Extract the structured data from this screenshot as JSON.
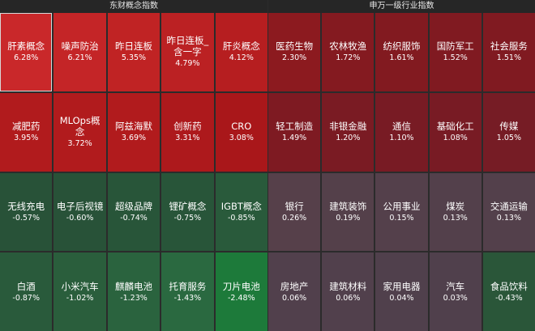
{
  "panels": {
    "left": {
      "title": "东财概念指数",
      "cells": [
        {
          "name": "肝素概念",
          "pct": "6.28%",
          "color": "#c9282a"
        },
        {
          "name": "噪声防治",
          "pct": "6.21%",
          "color": "#c42527"
        },
        {
          "name": "昨日连板",
          "pct": "5.35%",
          "color": "#c02324"
        },
        {
          "name": "昨日连板_含一字",
          "pct": "4.79%",
          "color": "#bb2123"
        },
        {
          "name": "肝炎概念",
          "pct": "4.12%",
          "color": "#b61e20"
        },
        {
          "name": "减肥药",
          "pct": "3.95%",
          "color": "#b11b1d"
        },
        {
          "name": "MLOps概念",
          "pct": "3.72%",
          "color": "#b11b1d"
        },
        {
          "name": "阿兹海默",
          "pct": "3.69%",
          "color": "#b11b1d"
        },
        {
          "name": "创新药",
          "pct": "3.31%",
          "color": "#ad191c"
        },
        {
          "name": "CRO",
          "pct": "3.08%",
          "color": "#a9171a"
        },
        {
          "name": "无线充电",
          "pct": "-0.57%",
          "color": "#285238"
        },
        {
          "name": "电子后视镜",
          "pct": "-0.60%",
          "color": "#285238"
        },
        {
          "name": "超级品牌",
          "pct": "-0.74%",
          "color": "#285539"
        },
        {
          "name": "锂矿概念",
          "pct": "-0.75%",
          "color": "#285539"
        },
        {
          "name": "IGBT概念",
          "pct": "-0.85%",
          "color": "#295a3b"
        },
        {
          "name": "白酒",
          "pct": "-0.87%",
          "color": "#295a3b"
        },
        {
          "name": "小米汽车",
          "pct": "-1.02%",
          "color": "#2a5e3c"
        },
        {
          "name": "麒麟电池",
          "pct": "-1.23%",
          "color": "#2a633e"
        },
        {
          "name": "托育服务",
          "pct": "-1.43%",
          "color": "#2a6940"
        },
        {
          "name": "刀片电池",
          "pct": "-2.48%",
          "color": "#1d7a3a"
        }
      ]
    },
    "right": {
      "title": "申万一级行业指数",
      "cells": [
        {
          "name": "医药生物",
          "pct": "2.30%",
          "color": "#8c1a1f"
        },
        {
          "name": "农林牧渔",
          "pct": "1.72%",
          "color": "#841a20"
        },
        {
          "name": "纺织服饰",
          "pct": "1.61%",
          "color": "#821a20"
        },
        {
          "name": "国防军工",
          "pct": "1.52%",
          "color": "#801a21"
        },
        {
          "name": "社会服务",
          "pct": "1.51%",
          "color": "#801a21"
        },
        {
          "name": "轻工制造",
          "pct": "1.49%",
          "color": "#7e1a22"
        },
        {
          "name": "非银金融",
          "pct": "1.20%",
          "color": "#7a1b23"
        },
        {
          "name": "通信",
          "pct": "1.10%",
          "color": "#781b24"
        },
        {
          "name": "基础化工",
          "pct": "1.08%",
          "color": "#781b24"
        },
        {
          "name": "传媒",
          "pct": "1.05%",
          "color": "#761c25"
        },
        {
          "name": "银行",
          "pct": "0.26%",
          "color": "#56404a"
        },
        {
          "name": "建筑装饰",
          "pct": "0.19%",
          "color": "#54404a"
        },
        {
          "name": "公用事业",
          "pct": "0.15%",
          "color": "#54404b"
        },
        {
          "name": "煤炭",
          "pct": "0.13%",
          "color": "#53404b"
        },
        {
          "name": "交通运输",
          "pct": "0.13%",
          "color": "#53404b"
        },
        {
          "name": "房地产",
          "pct": "0.06%",
          "color": "#51404c"
        },
        {
          "name": "建筑材料",
          "pct": "0.06%",
          "color": "#51404c"
        },
        {
          "name": "家用电器",
          "pct": "0.04%",
          "color": "#50404c"
        },
        {
          "name": "汽车",
          "pct": "0.03%",
          "color": "#50404c"
        },
        {
          "name": "食品饮料",
          "pct": "-0.43%",
          "color": "#2a5639"
        }
      ]
    }
  }
}
